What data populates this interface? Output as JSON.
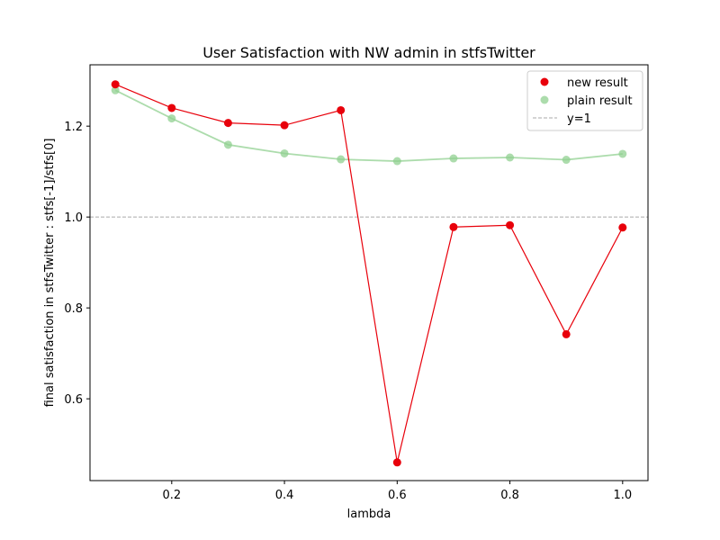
{
  "chart_data": {
    "type": "line",
    "title": "User Satisfaction with NW admin in stfsTwitter",
    "xlabel": "lambda",
    "ylabel": "final satisfaction in stfsTwitter : stfs[-1]/stfs[0]",
    "xlim": [
      0.055,
      1.045
    ],
    "ylim": [
      0.42,
      1.335
    ],
    "xticks": [
      0.2,
      0.4,
      0.6,
      0.8,
      1.0
    ],
    "xtick_labels": [
      "0.2",
      "0.4",
      "0.6",
      "0.8",
      "1.0"
    ],
    "yticks": [
      0.6,
      0.8,
      1.0,
      1.2
    ],
    "ytick_labels": [
      "0.6",
      "0.8",
      "1.0",
      "1.2"
    ],
    "x": [
      0.1,
      0.2,
      0.3,
      0.4,
      0.5,
      0.6,
      0.7,
      0.8,
      0.9,
      1.0
    ],
    "series": [
      {
        "name": "new result",
        "color": "#e8000b",
        "values": [
          1.292,
          1.24,
          1.207,
          1.202,
          1.235,
          0.46,
          0.978,
          0.982,
          0.742,
          0.977
        ]
      },
      {
        "name": "plain result",
        "color": "#90d090",
        "values": [
          1.279,
          1.217,
          1.159,
          1.14,
          1.127,
          1.123,
          1.129,
          1.131,
          1.126,
          1.139
        ]
      }
    ],
    "reference_line": {
      "name": "y=1",
      "y": 1.0,
      "color": "#aaaaaa",
      "style": "dashed"
    },
    "legend_position": "top-right",
    "grid": false
  }
}
